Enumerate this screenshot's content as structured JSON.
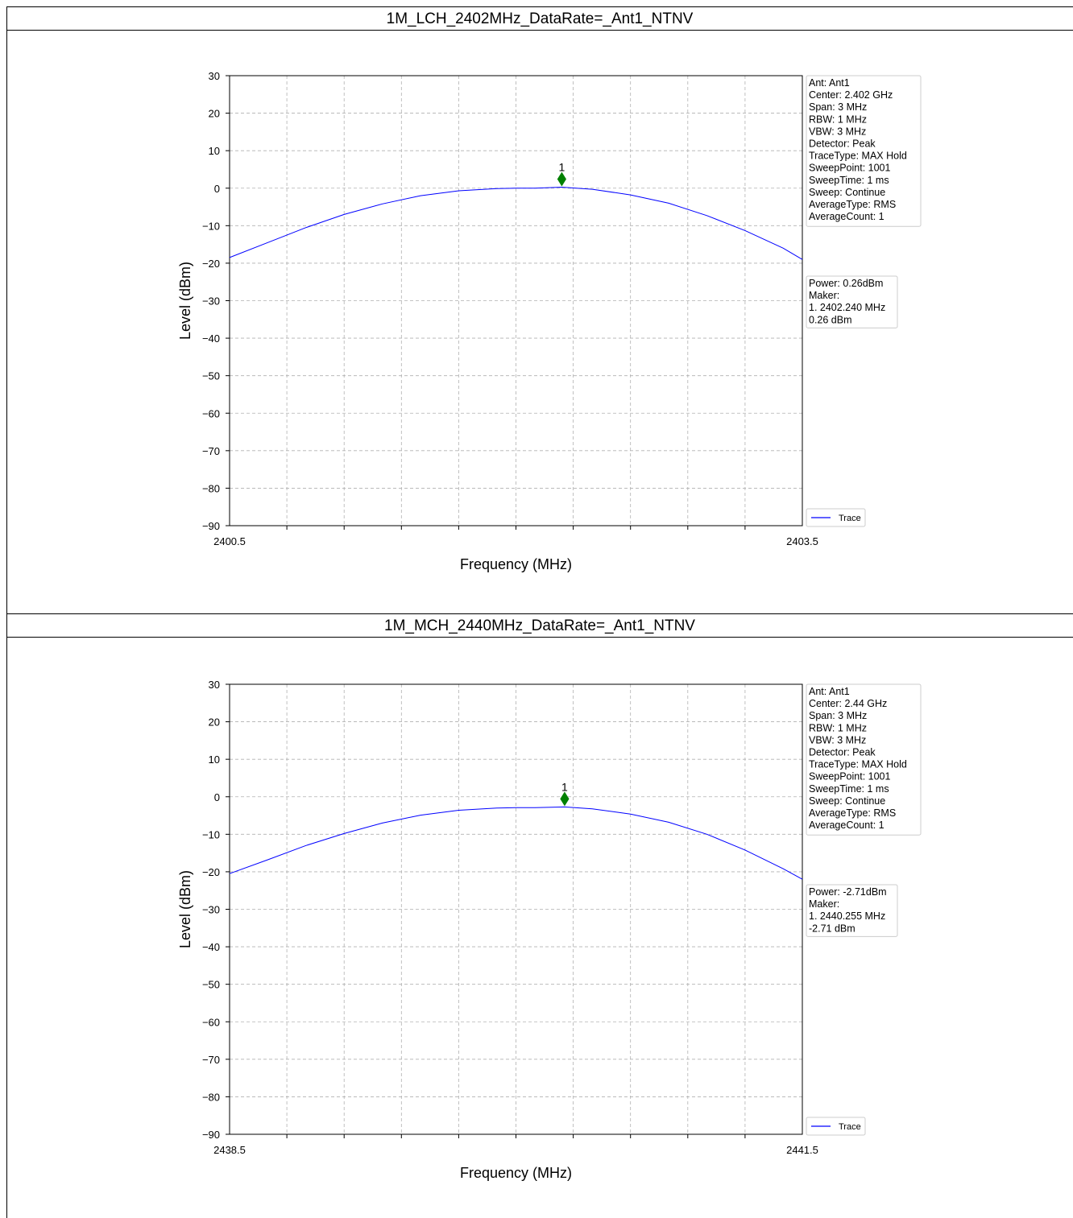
{
  "charts": [
    {
      "section_title": "1M_LCH_2402MHz_DataRate=_Ant1_NTNV",
      "info_lines": [
        "Ant: Ant1",
        "Center: 2.402 GHz",
        "Span: 3 MHz",
        "RBW: 1 MHz",
        "VBW: 3 MHz",
        "Detector: Peak",
        "TraceType: MAX Hold",
        "SweepPoint: 1001",
        "SweepTime: 1 ms",
        "Sweep: Continue",
        "AverageType: RMS",
        "AverageCount: 1"
      ],
      "power_lines": [
        "Power: 0.26dBm",
        "Maker:",
        "1. 2402.240 MHz",
        "    0.26 dBm"
      ]
    },
    {
      "section_title": "1M_MCH_2440MHz_DataRate=_Ant1_NTNV",
      "info_lines": [
        "Ant: Ant1",
        "Center: 2.44 GHz",
        "Span: 3 MHz",
        "RBW: 1 MHz",
        "VBW: 3 MHz",
        "Detector: Peak",
        "TraceType: MAX Hold",
        "SweepPoint: 1001",
        "SweepTime: 1 ms",
        "Sweep: Continue",
        "AverageType: RMS",
        "AverageCount: 1"
      ],
      "power_lines": [
        "Power: -2.71dBm",
        "Maker:",
        "1. 2440.255 MHz",
        "    -2.71 dBm"
      ]
    }
  ],
  "chart_data": [
    {
      "type": "line",
      "xlabel": "Frequency (MHz)",
      "ylabel": "Level (dBm)",
      "xlim": [
        2400.5,
        2403.5
      ],
      "ylim": [
        -90,
        30
      ],
      "x_tick_labels": [
        "2400.5",
        "2403.5"
      ],
      "y_ticks": [
        30,
        20,
        10,
        0,
        -10,
        -20,
        -30,
        -40,
        -50,
        -60,
        -70,
        -80,
        -90
      ],
      "grid": true,
      "legend": "bottom-right",
      "series": [
        {
          "name": "Trace",
          "color": "#0000ff",
          "x": [
            2400.5,
            2400.7,
            2400.9,
            2401.1,
            2401.3,
            2401.5,
            2401.7,
            2401.9,
            2402.0,
            2402.1,
            2402.24,
            2402.4,
            2402.6,
            2402.8,
            2403.0,
            2403.2,
            2403.4,
            2403.5
          ],
          "y": [
            -18.5,
            -14.5,
            -10.5,
            -7.0,
            -4.2,
            -2.0,
            -0.7,
            -0.1,
            0.0,
            0.0,
            0.26,
            -0.3,
            -1.8,
            -4.0,
            -7.3,
            -11.3,
            -16.0,
            -19.0
          ]
        }
      ],
      "marker": {
        "label": "1",
        "x": 2402.24,
        "y": 0.26,
        "color": "#008000"
      }
    },
    {
      "type": "line",
      "xlabel": "Frequency (MHz)",
      "ylabel": "Level (dBm)",
      "xlim": [
        2438.5,
        2441.5
      ],
      "ylim": [
        -90,
        30
      ],
      "x_tick_labels": [
        "2438.5",
        "2441.5"
      ],
      "y_ticks": [
        30,
        20,
        10,
        0,
        -10,
        -20,
        -30,
        -40,
        -50,
        -60,
        -70,
        -80,
        -90
      ],
      "grid": true,
      "legend": "bottom-right",
      "series": [
        {
          "name": "Trace",
          "color": "#0000ff",
          "x": [
            2438.5,
            2438.7,
            2438.9,
            2439.1,
            2439.3,
            2439.5,
            2439.7,
            2439.9,
            2440.0,
            2440.1,
            2440.255,
            2440.4,
            2440.6,
            2440.8,
            2441.0,
            2441.2,
            2441.4,
            2441.5
          ],
          "y": [
            -20.5,
            -16.8,
            -13.0,
            -9.8,
            -7.0,
            -4.9,
            -3.6,
            -3.0,
            -2.9,
            -2.9,
            -2.71,
            -3.2,
            -4.6,
            -6.8,
            -10.0,
            -14.2,
            -19.2,
            -22.0
          ]
        }
      ],
      "marker": {
        "label": "1",
        "x": 2440.255,
        "y": -2.71,
        "color": "#008000"
      }
    }
  ]
}
